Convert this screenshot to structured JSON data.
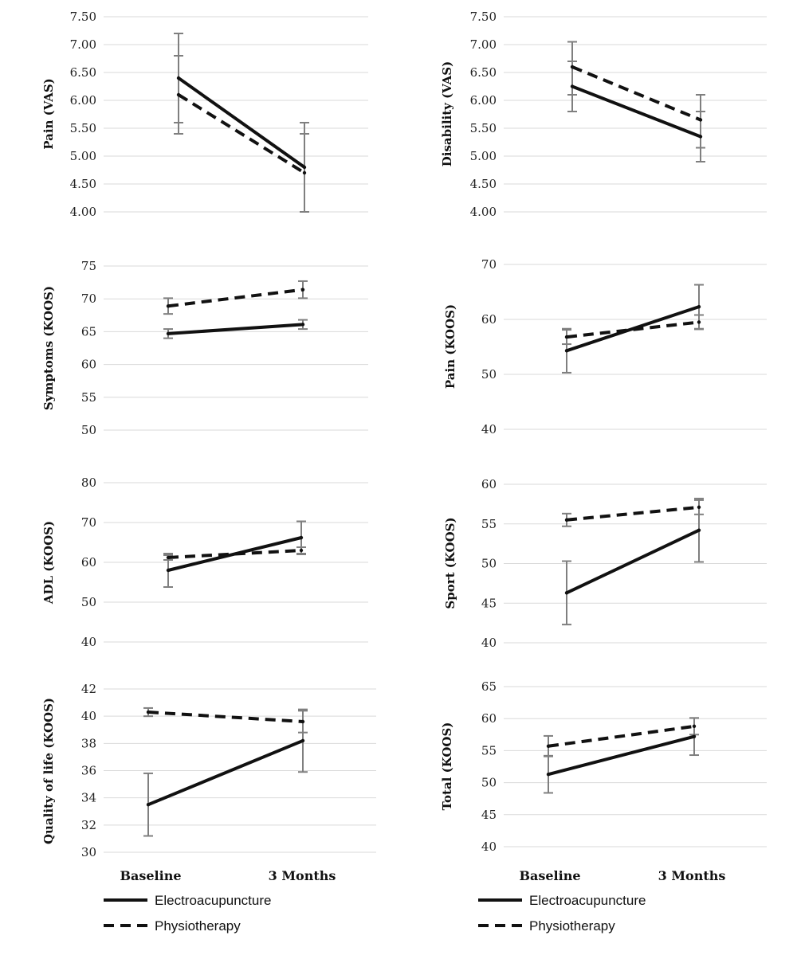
{
  "x_categories": [
    "Baseline",
    "3 Months"
  ],
  "legends": [
    {
      "items": [
        {
          "label": "Electroacupuncture",
          "style": "solid"
        },
        {
          "label": "Physiotherapy",
          "style": "dashed"
        }
      ]
    },
    {
      "items": [
        {
          "label": "Electroacupuncture",
          "style": "solid"
        },
        {
          "label": "Physiotherapy",
          "style": "dashed"
        }
      ]
    }
  ],
  "chart_data": [
    {
      "type": "line",
      "ylabel": "Pain (VAS)",
      "yticks": [
        "7.50",
        "7.00",
        "6.50",
        "6.00",
        "5.50",
        "5.00",
        "4.50",
        "4.00"
      ],
      "ylim": [
        4.0,
        7.5
      ],
      "categories": [
        "Baseline",
        "3 Months"
      ],
      "grid": true,
      "series": [
        {
          "name": "Electroacupuncture",
          "values": [
            6.4,
            4.8
          ],
          "error_bars": [
            [
              5.6,
              7.2
            ],
            [
              4.0,
              5.6
            ]
          ]
        },
        {
          "name": "Physiotherapy",
          "values": [
            6.1,
            4.7
          ],
          "error_bars": [
            [
              5.4,
              6.8
            ],
            [
              4.0,
              5.4
            ]
          ]
        }
      ]
    },
    {
      "type": "line",
      "ylabel": "Disability (VAS)",
      "yticks": [
        "7.50",
        "7.00",
        "6.50",
        "6.00",
        "5.50",
        "5.00",
        "4.50",
        "4.00"
      ],
      "ylim": [
        4.0,
        7.5
      ],
      "categories": [
        "Baseline",
        "3 Months"
      ],
      "grid": true,
      "series": [
        {
          "name": "Electroacupuncture",
          "values": [
            6.25,
            5.35
          ],
          "error_bars": [
            [
              5.8,
              6.7
            ],
            [
              4.9,
              5.8
            ]
          ]
        },
        {
          "name": "Physiotherapy",
          "values": [
            6.6,
            5.65
          ],
          "error_bars": [
            [
              6.1,
              7.05
            ],
            [
              5.15,
              6.1
            ]
          ]
        }
      ]
    },
    {
      "type": "line",
      "ylabel": "Symptoms (KOOS)",
      "yticks": [
        "75",
        "70",
        "65",
        "60",
        "55",
        "50"
      ],
      "ylim": [
        50,
        75
      ],
      "categories": [
        "Baseline",
        "3 Months"
      ],
      "grid": true,
      "series": [
        {
          "name": "Electroacupuncture",
          "values": [
            64.7,
            66.1
          ],
          "error_bars": [
            [
              64.0,
              65.4
            ],
            [
              65.4,
              66.8
            ]
          ]
        },
        {
          "name": "Physiotherapy",
          "values": [
            68.9,
            71.4
          ],
          "error_bars": [
            [
              67.7,
              70.1
            ],
            [
              70.1,
              72.7
            ]
          ]
        }
      ]
    },
    {
      "type": "line",
      "ylabel": "Pain (KOOS)",
      "yticks": [
        "70",
        "60",
        "50",
        "40"
      ],
      "ylim": [
        40,
        70
      ],
      "categories": [
        "Baseline",
        "3 Months"
      ],
      "grid": true,
      "series": [
        {
          "name": "Electroacupuncture",
          "values": [
            54.3,
            62.3
          ],
          "error_bars": [
            [
              50.3,
              58.3
            ],
            [
              58.3,
              66.3
            ]
          ]
        },
        {
          "name": "Physiotherapy",
          "values": [
            56.8,
            59.5
          ],
          "error_bars": [
            [
              55.5,
              58.1
            ],
            [
              58.2,
              60.8
            ]
          ]
        }
      ]
    },
    {
      "type": "line",
      "ylabel": "ADL (KOOS)",
      "yticks": [
        "80",
        "70",
        "60",
        "50",
        "40"
      ],
      "ylim": [
        40,
        80
      ],
      "categories": [
        "Baseline",
        "3 Months"
      ],
      "grid": true,
      "series": [
        {
          "name": "Electroacupuncture",
          "values": [
            58.0,
            66.2
          ],
          "error_bars": [
            [
              53.8,
              62.2
            ],
            [
              62.0,
              70.3
            ]
          ]
        },
        {
          "name": "Physiotherapy",
          "values": [
            61.2,
            63.0
          ],
          "error_bars": [
            [
              60.6,
              61.8
            ],
            [
              62.2,
              63.8
            ]
          ]
        }
      ]
    },
    {
      "type": "line",
      "ylabel": "Sport (KOOS)",
      "yticks": [
        "60",
        "55",
        "50",
        "45",
        "40"
      ],
      "ylim": [
        40,
        60
      ],
      "categories": [
        "Baseline",
        "3 Months"
      ],
      "grid": true,
      "series": [
        {
          "name": "Electroacupuncture",
          "values": [
            46.3,
            54.2
          ],
          "error_bars": [
            [
              42.3,
              50.3
            ],
            [
              50.2,
              58.2
            ]
          ]
        },
        {
          "name": "Physiotherapy",
          "values": [
            55.5,
            57.1
          ],
          "error_bars": [
            [
              54.7,
              56.3
            ],
            [
              56.2,
              58.0
            ]
          ]
        }
      ]
    },
    {
      "type": "line",
      "ylabel": "Quality of life (KOOS)",
      "yticks": [
        "42",
        "40",
        "38",
        "36",
        "34",
        "32",
        "30"
      ],
      "ylim": [
        30,
        42
      ],
      "categories": [
        "Baseline",
        "3 Months"
      ],
      "grid": true,
      "series": [
        {
          "name": "Electroacupuncture",
          "values": [
            33.5,
            38.2
          ],
          "error_bars": [
            [
              31.2,
              35.8
            ],
            [
              35.9,
              40.5
            ]
          ]
        },
        {
          "name": "Physiotherapy",
          "values": [
            40.3,
            39.6
          ],
          "error_bars": [
            [
              40.0,
              40.6
            ],
            [
              38.8,
              40.4
            ]
          ]
        }
      ]
    },
    {
      "type": "line",
      "ylabel": "Total (KOOS)",
      "yticks": [
        "65",
        "60",
        "55",
        "50",
        "45",
        "40"
      ],
      "ylim": [
        40,
        65
      ],
      "categories": [
        "Baseline",
        "3 Months"
      ],
      "grid": true,
      "series": [
        {
          "name": "Electroacupuncture",
          "values": [
            51.3,
            57.2
          ],
          "error_bars": [
            [
              48.4,
              54.2
            ],
            [
              54.3,
              60.1
            ]
          ]
        },
        {
          "name": "Physiotherapy",
          "values": [
            55.7,
            58.8
          ],
          "error_bars": [
            [
              54.1,
              57.3
            ],
            [
              57.5,
              60.1
            ]
          ]
        }
      ]
    }
  ]
}
